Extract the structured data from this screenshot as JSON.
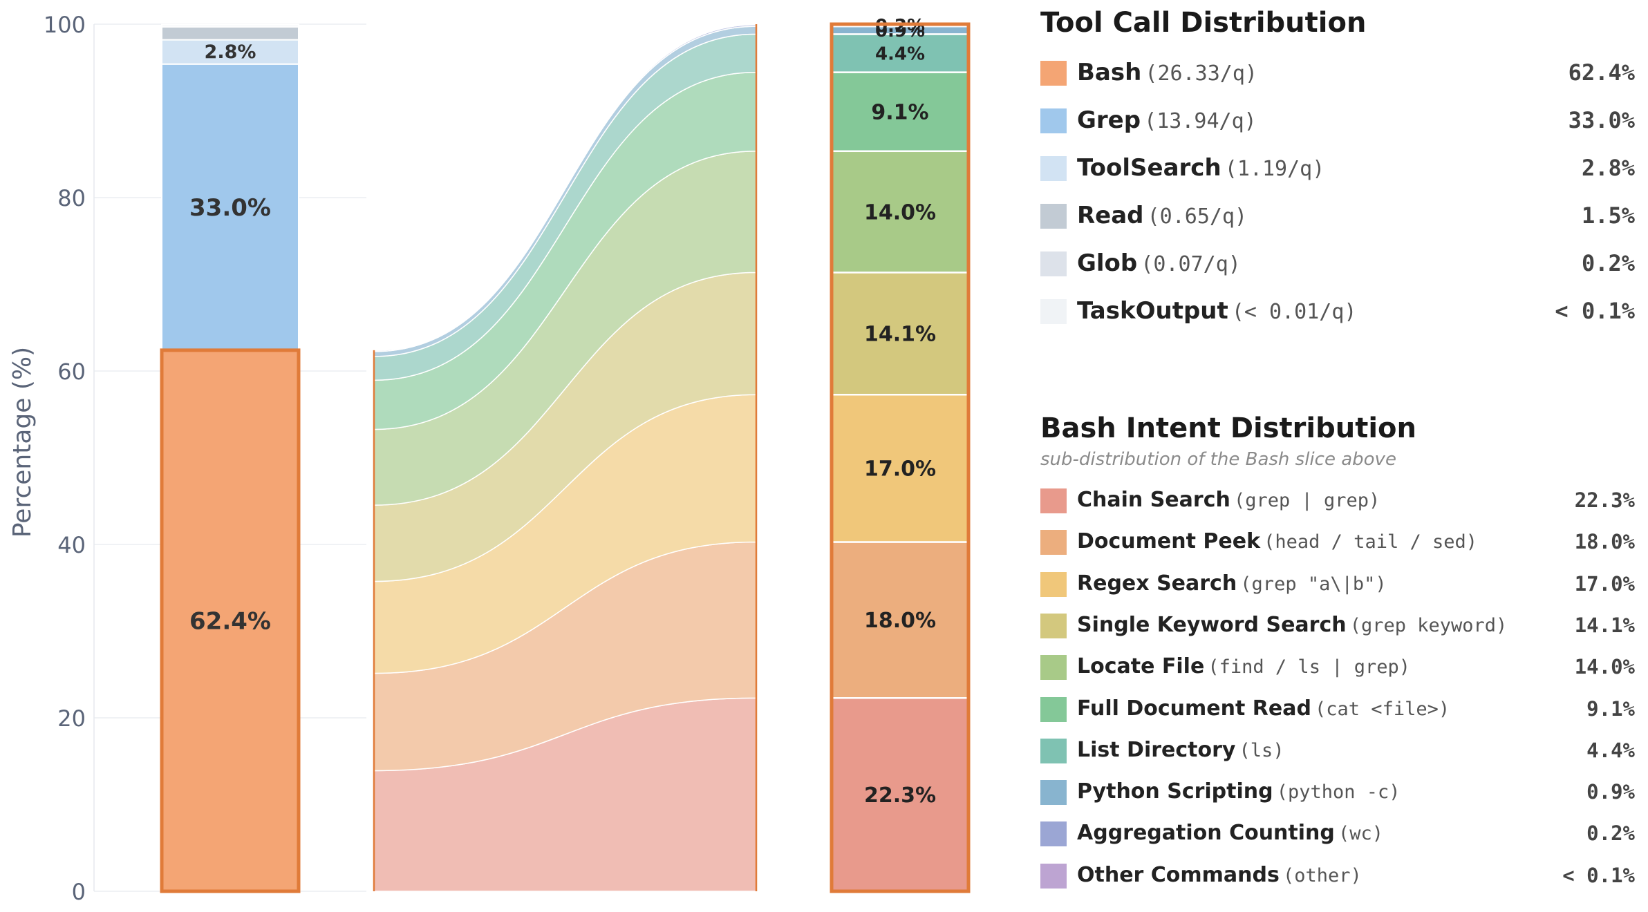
{
  "chart_data": {
    "type": "bar",
    "y_axis": {
      "label": "Percentage (%)",
      "ylim": [
        0,
        100
      ],
      "ticks": [
        "0",
        "20",
        "40",
        "60",
        "80",
        "100"
      ],
      "grid": true
    },
    "tool_call_distribution": {
      "title": "Tool Call Distribution",
      "series": [
        {
          "name": "Bash",
          "detail": "(26.33/q)",
          "value": 62.4,
          "pct_label": "62.4%",
          "bar_label": "62.4%",
          "color": "#f4a574"
        },
        {
          "name": "Grep",
          "detail": "(13.94/q)",
          "value": 33.0,
          "pct_label": "33.0%",
          "bar_label": "33.0%",
          "color": "#a0c8ec"
        },
        {
          "name": "ToolSearch",
          "detail": "(1.19/q)",
          "value": 2.8,
          "pct_label": "2.8%",
          "bar_label": "2.8%",
          "color": "#d2e3f3"
        },
        {
          "name": "Read",
          "detail": "(0.65/q)",
          "value": 1.5,
          "pct_label": "1.5%",
          "bar_label": "",
          "color": "#c2cbd4"
        },
        {
          "name": "Glob",
          "detail": "(0.07/q)",
          "value": 0.2,
          "pct_label": "0.2%",
          "bar_label": "",
          "color": "#dde2ea"
        },
        {
          "name": "TaskOutput",
          "detail": "(< 0.01/q)",
          "value": 0.05,
          "pct_label": "< 0.1%",
          "bar_label": "",
          "color": "#f0f3f6"
        }
      ]
    },
    "bash_intent_distribution": {
      "title": "Bash Intent Distribution",
      "subtitle": "sub-distribution of the Bash slice above",
      "series": [
        {
          "name": "Chain Search",
          "detail": "(grep | grep)",
          "value": 22.3,
          "pct_label": "22.3%",
          "bar_label": "22.3%",
          "color": "#e89a8c"
        },
        {
          "name": "Document Peek",
          "detail": "(head / tail / sed)",
          "value": 18.0,
          "pct_label": "18.0%",
          "bar_label": "18.0%",
          "color": "#ecae7e"
        },
        {
          "name": "Regex Search",
          "detail": "(grep \"a\\|b\")",
          "value": 17.0,
          "pct_label": "17.0%",
          "bar_label": "17.0%",
          "color": "#f0c77a"
        },
        {
          "name": "Single Keyword Search",
          "detail": "(grep keyword)",
          "value": 14.1,
          "pct_label": "14.1%",
          "bar_label": "14.1%",
          "color": "#d3c87e"
        },
        {
          "name": "Locate File",
          "detail": "(find / ls | grep)",
          "value": 14.0,
          "pct_label": "14.0%",
          "bar_label": "14.0%",
          "color": "#a8ca88"
        },
        {
          "name": "Full Document Read",
          "detail": "(cat <file>)",
          "value": 9.1,
          "pct_label": "9.1%",
          "bar_label": "9.1%",
          "color": "#84c898"
        },
        {
          "name": "List Directory",
          "detail": "(ls)",
          "value": 4.4,
          "pct_label": "4.4%",
          "bar_label": "4.4%",
          "color": "#7fc2b2"
        },
        {
          "name": "Python Scripting",
          "detail": "(python -c)",
          "value": 0.9,
          "pct_label": "0.9%",
          "bar_label": "0.9%",
          "color": "#88b4cf"
        },
        {
          "name": "Aggregation Counting",
          "detail": "(wc)",
          "value": 0.2,
          "pct_label": "0.2%",
          "bar_label": "0.2%",
          "color": "#9ba6d4"
        },
        {
          "name": "Other Commands",
          "detail": "(other)",
          "value": 0.05,
          "pct_label": "< 0.1%",
          "bar_label": "",
          "color": "#bda4d2"
        }
      ]
    },
    "highlight_color": "#e07b39"
  }
}
